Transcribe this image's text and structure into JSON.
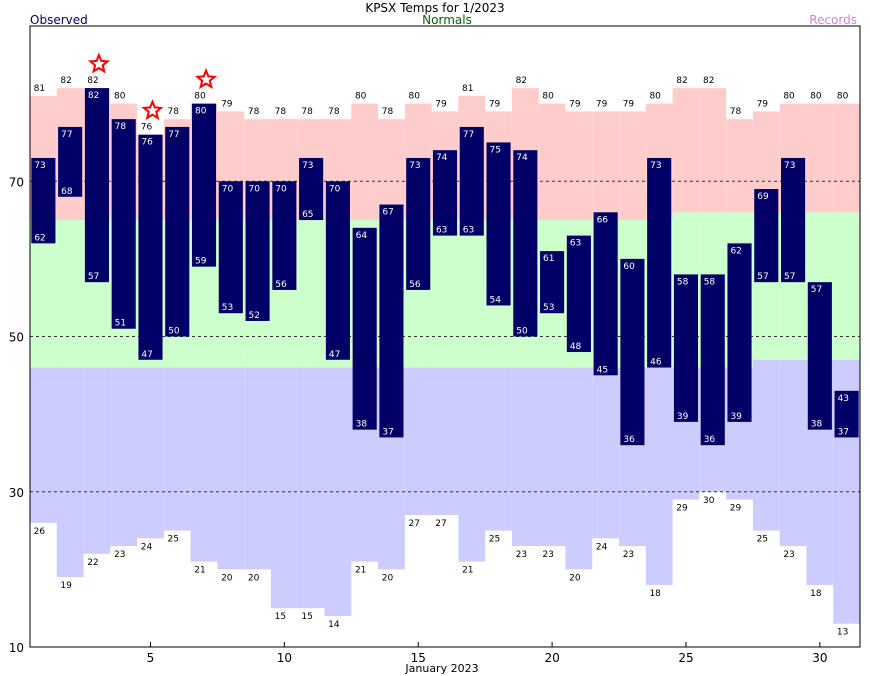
{
  "chart_data": {
    "type": "bar",
    "title": "KPSX Temps for 1/2023",
    "legend": {
      "observed": "Observed",
      "normals": "Normals",
      "records": "Records"
    },
    "xlabel": "January 2023",
    "ylabel": "",
    "ylim": [
      10,
      90
    ],
    "xlim": [
      0.5,
      31.5
    ],
    "yticks": [
      10,
      30,
      50,
      70
    ],
    "xticks": [
      5,
      10,
      15,
      20,
      25,
      30
    ],
    "grid_lines": [
      30,
      50,
      70
    ],
    "days": [
      1,
      2,
      3,
      4,
      5,
      6,
      7,
      8,
      9,
      10,
      11,
      12,
      13,
      14,
      15,
      16,
      17,
      18,
      19,
      20,
      21,
      22,
      23,
      24,
      25,
      26,
      27,
      28,
      29,
      30,
      31
    ],
    "series": [
      {
        "name": "Observed High",
        "values": [
          73,
          77,
          82,
          78,
          76,
          77,
          80,
          70,
          70,
          70,
          73,
          70,
          64,
          67,
          73,
          74,
          77,
          75,
          74,
          61,
          63,
          66,
          60,
          73,
          58,
          58,
          62,
          69,
          73,
          57,
          43
        ]
      },
      {
        "name": "Observed Low",
        "values": [
          62,
          68,
          57,
          51,
          47,
          50,
          59,
          53,
          52,
          56,
          65,
          47,
          38,
          37,
          56,
          63,
          63,
          54,
          50,
          53,
          48,
          45,
          36,
          46,
          39,
          36,
          39,
          57,
          57,
          38,
          37
        ]
      },
      {
        "name": "Record High",
        "values": [
          81,
          82,
          82,
          80,
          76,
          78,
          80,
          79,
          78,
          78,
          78,
          78,
          80,
          78,
          80,
          79,
          81,
          79,
          82,
          80,
          79,
          79,
          79,
          80,
          82,
          82,
          78,
          79,
          80,
          80,
          80
        ]
      },
      {
        "name": "Record Low",
        "values": [
          26,
          19,
          22,
          23,
          24,
          25,
          21,
          20,
          20,
          15,
          15,
          14,
          21,
          20,
          27,
          27,
          21,
          25,
          23,
          23,
          20,
          24,
          23,
          18,
          29,
          30,
          29,
          25,
          23,
          18,
          13
        ]
      },
      {
        "name": "Normal High",
        "values": [
          65,
          65,
          65,
          65,
          65,
          65,
          65,
          65,
          65,
          65,
          65,
          65,
          65,
          65,
          65,
          65,
          65,
          65,
          65,
          65,
          65,
          65,
          65,
          65,
          66,
          66,
          66,
          66,
          66,
          66,
          66
        ]
      },
      {
        "name": "Normal Low",
        "values": [
          46,
          46,
          46,
          46,
          46,
          46,
          46,
          46,
          46,
          46,
          46,
          46,
          46,
          46,
          46,
          46,
          46,
          46,
          46,
          46,
          46,
          46,
          46,
          46,
          46,
          46,
          46,
          47,
          47,
          47,
          47
        ]
      }
    ],
    "record_markers": [
      3,
      5,
      7
    ],
    "colors": {
      "observed": "#000066",
      "record_band": "#ffcccc",
      "normal_band": "#ccffcc",
      "low_band": "#ccccff",
      "star": "#ff0000",
      "normals_text": "#006600",
      "records_text": "#cc88cc"
    }
  }
}
